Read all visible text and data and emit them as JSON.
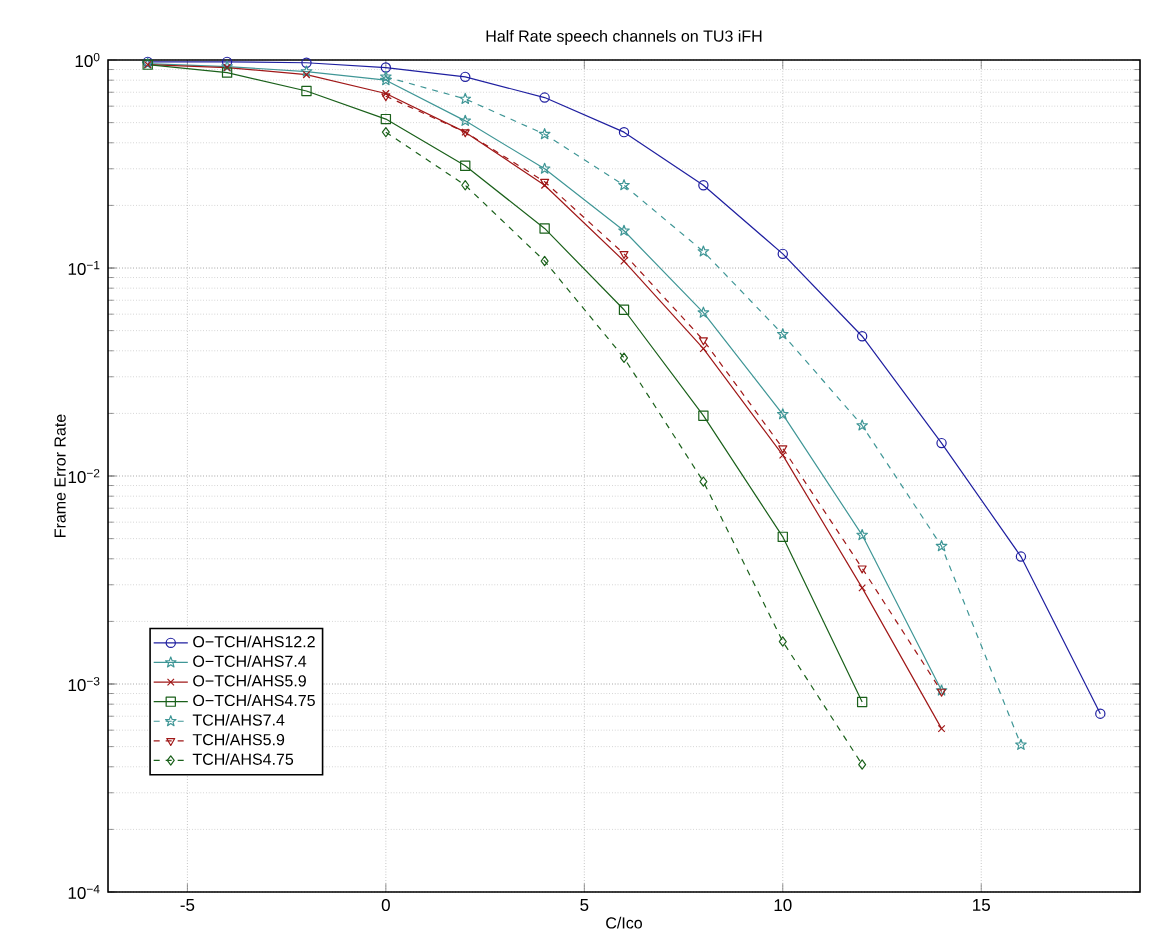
{
  "chart_data": {
    "type": "line",
    "title": "Half Rate speech channels on TU3 iFH",
    "xlabel": "C/Ico",
    "ylabel": "Frame Error Rate",
    "log": "y",
    "grid": true,
    "legend": "bottom left",
    "xlim": [
      -7,
      19
    ],
    "xticks": [
      -5,
      0,
      5,
      10,
      15
    ],
    "ylim": [
      0.0001,
      1
    ],
    "yticks": [
      {
        "value": 0.0001,
        "label": "10$^{−4}$"
      },
      {
        "value": 0.001,
        "label": "10$^{−3}$"
      },
      {
        "value": 0.01,
        "label": "10$^{−2}$"
      },
      {
        "value": 0.1,
        "label": "10$^{−1}$"
      },
      {
        "value": 1,
        "label": "10$^{0}$"
      }
    ],
    "series": [
      {
        "name": "O−TCH/AHS12.2",
        "color": "#1f1fa0",
        "marker": "circle",
        "line_style": "solid",
        "x": [
          -6,
          -4,
          -2,
          0,
          2,
          4,
          6,
          8,
          10,
          12,
          14,
          16,
          18
        ],
        "values": [
          0.98,
          0.98,
          0.97,
          0.92,
          0.83,
          0.66,
          0.45,
          0.25,
          0.117,
          0.047,
          0.0144,
          0.0041,
          0.00072
        ]
      },
      {
        "name": "O−TCH/AHS7.4",
        "color": "#3f9696",
        "marker": "star",
        "line_style": "solid",
        "x": [
          -6,
          -4,
          -2,
          0,
          2,
          4,
          6,
          8,
          10,
          12,
          14
        ],
        "values": [
          0.96,
          0.93,
          0.88,
          0.8,
          0.51,
          0.3,
          0.151,
          0.061,
          0.0198,
          0.0052,
          0.00093
        ]
      },
      {
        "name": "O−TCH/AHS5.9",
        "color": "#a01818",
        "marker": "cross",
        "line_style": "solid",
        "x": [
          -6,
          -4,
          -2,
          0,
          2,
          4,
          6,
          8,
          10,
          12,
          14
        ],
        "values": [
          0.95,
          0.92,
          0.85,
          0.69,
          0.45,
          0.25,
          0.108,
          0.041,
          0.0126,
          0.0029,
          0.00061
        ]
      },
      {
        "name": "O−TCH/AHS4.75",
        "color": "#1a601a",
        "marker": "square",
        "line_style": "solid",
        "x": [
          -6,
          -4,
          -2,
          0,
          2,
          4,
          6,
          8,
          10,
          12
        ],
        "values": [
          0.95,
          0.87,
          0.71,
          0.52,
          0.31,
          0.155,
          0.063,
          0.0195,
          0.0051,
          0.00082
        ]
      },
      {
        "name": "TCH/AHS7.4",
        "color": "#3f9696",
        "marker": "star",
        "line_style": "dashed",
        "x": [
          0,
          2,
          4,
          6,
          8,
          10,
          12,
          14,
          16
        ],
        "values": [
          0.83,
          0.65,
          0.44,
          0.25,
          0.12,
          0.048,
          0.0175,
          0.0046,
          0.00051
        ]
      },
      {
        "name": "TCH/AHS5.9",
        "color": "#a01818",
        "marker": "triangle",
        "line_style": "dashed",
        "x": [
          0,
          2,
          4,
          6,
          8,
          10,
          12,
          14
        ],
        "values": [
          0.67,
          0.45,
          0.26,
          0.117,
          0.045,
          0.0136,
          0.0036,
          0.00092
        ]
      },
      {
        "name": "TCH/AHS4.75",
        "color": "#1a601a",
        "marker": "diamond",
        "line_style": "dashed",
        "x": [
          0,
          2,
          4,
          6,
          8,
          10,
          12
        ],
        "values": [
          0.45,
          0.25,
          0.108,
          0.037,
          0.0094,
          0.0016,
          0.00041
        ]
      }
    ]
  }
}
